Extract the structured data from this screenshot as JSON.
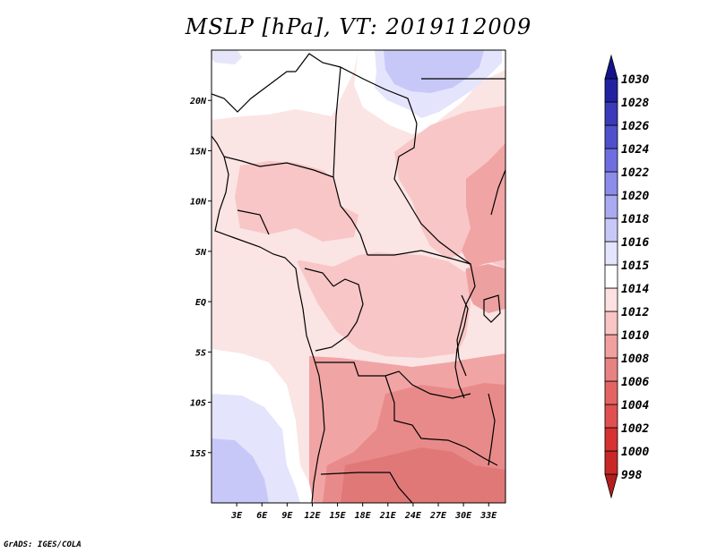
{
  "title": "MSLP [hPa], VT: 2019112009",
  "credit": "GrADS: IGES/COLA",
  "chart_data": {
    "type": "map",
    "variable": "Mean sea level pressure",
    "units": "hPa",
    "valid_time": "2019112009",
    "lon_range": [
      0,
      35
    ],
    "lat_range": [
      -20,
      25
    ],
    "x_ticks": [
      "3E",
      "6E",
      "9E",
      "12E",
      "15E",
      "18E",
      "21E",
      "24E",
      "27E",
      "30E",
      "33E"
    ],
    "y_ticks": [
      "20N",
      "15N",
      "10N",
      "5N",
      "EQ",
      "5S",
      "10S",
      "15S"
    ],
    "colorbar_levels": [
      "998",
      "1000",
      "1002",
      "1004",
      "1006",
      "1008",
      "1010",
      "1012",
      "1014",
      "1015",
      "1016",
      "1018",
      "1020",
      "1022",
      "1024",
      "1026",
      "1028",
      "1030"
    ],
    "colorbar_colors": [
      "#b41e1e",
      "#c82828",
      "#d73232",
      "#e05050",
      "#e46464",
      "#e98282",
      "#f1a0a0",
      "#f8c4c4",
      "#fde0e0",
      "#ffffff",
      "#e4e4ff",
      "#c8c8f8",
      "#aaaaf0",
      "#8c8cea",
      "#6e6ee0",
      "#5050cc",
      "#3a3aba",
      "#2222a0",
      "#14148a"
    ]
  }
}
